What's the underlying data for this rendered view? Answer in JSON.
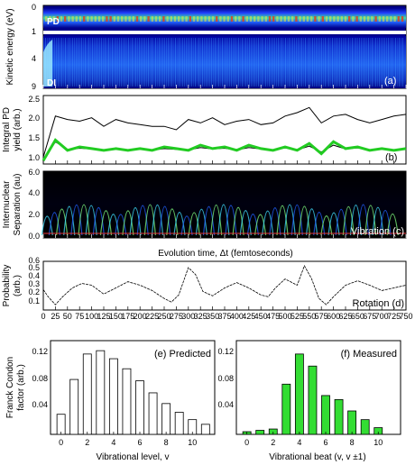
{
  "panel_a": {
    "ylabel": "Kinetic energy (eV)",
    "yticks": [
      "0",
      "1",
      "4",
      "9"
    ],
    "label_pd": "PD",
    "label_di": "DI",
    "panel_label": "(a)"
  },
  "panel_b": {
    "ylabel_line1": "Integral PD",
    "ylabel_line2": "yield (arb.)",
    "yticks": [
      "1.0",
      "1.5",
      "2.0",
      "2.5"
    ],
    "panel_label": "(b)"
  },
  "panel_c": {
    "ylabel_line1": "Internuclear",
    "ylabel_line2": "Separation (au)",
    "yticks": [
      "0.0",
      "2.0",
      "4.0",
      "6.0"
    ],
    "panel_label": "Vibration (c)"
  },
  "panel_d": {
    "ylabel_line1": "Probability",
    "ylabel_line2": "(arb.)",
    "yticks": [
      "0.1",
      "0.2",
      "0.3",
      "0.4",
      "0.5",
      "0.6"
    ],
    "panel_label": "Rotation (d)"
  },
  "time_axis": {
    "xlabel": "Evolution time, Δt (femtoseconds)",
    "xticks": [
      "0",
      "25",
      "50",
      "75",
      "100",
      "125",
      "150",
      "175",
      "200",
      "225",
      "250",
      "275",
      "300",
      "325",
      "350",
      "375",
      "400",
      "425",
      "450",
      "475",
      "500",
      "525",
      "550",
      "575",
      "600",
      "625",
      "650",
      "675",
      "700",
      "725",
      "750"
    ]
  },
  "panel_e": {
    "ylabel_line1": "Franck Condon",
    "ylabel_line2": "factor (arb.)",
    "xlabel": "Vibrational level, v",
    "panel_label": "(e) Predicted",
    "yticks": [
      "0.04",
      "0.08",
      "0.12"
    ],
    "xticks": [
      "0",
      "2",
      "4",
      "6",
      "8",
      "10"
    ]
  },
  "panel_f": {
    "xlabel": "Vibrational beat (v, v ±1)",
    "panel_label": "(f) Measured",
    "yticks": [
      "0.04",
      "0.08",
      "0.12"
    ],
    "xticks": [
      "0",
      "2",
      "4",
      "6",
      "8",
      "10"
    ]
  },
  "colors": {
    "heatmap_background": "#00008b",
    "green_fit": "#22cc22",
    "bar_green": "#33dd33",
    "bar_white": "#ffffff",
    "line_black": "#000000"
  },
  "chart_data": [
    {
      "type": "heatmap",
      "panel": "a",
      "ylabel": "Kinetic energy (eV)",
      "x_range": [
        0,
        750
      ],
      "y_ticks": [
        0,
        1,
        4,
        9
      ]
    },
    {
      "type": "line",
      "panel": "b",
      "ylabel": "Integral PD yield (arb.)",
      "x_range": [
        0,
        750
      ],
      "ylim": [
        0.9,
        2.9
      ],
      "series": [
        {
          "x": [
            0,
            25,
            50,
            75,
            100,
            125,
            150,
            175,
            200,
            225,
            250,
            275,
            300,
            325,
            350,
            375,
            400,
            425,
            450,
            475,
            500,
            525,
            550,
            575,
            600,
            625,
            650,
            675,
            700,
            725,
            750
          ],
          "values": [
            1.1,
            2.3,
            2.2,
            2.15,
            2.25,
            2.0,
            2.2,
            2.1,
            2.05,
            2.0,
            2.0,
            1.9,
            2.2,
            2.1,
            2.25,
            2.05,
            2.15,
            2.2,
            2.05,
            2.1,
            2.3,
            2.4,
            2.55,
            2.1,
            2.3,
            2.35,
            2.2,
            2.1,
            2.2,
            2.3,
            2.35
          ]
        },
        {
          "x": [
            0,
            25,
            50,
            75,
            100,
            125,
            150,
            175,
            200,
            225,
            250,
            275,
            300,
            325,
            350,
            375,
            400,
            425,
            450,
            475,
            500,
            525,
            550,
            575,
            600,
            625,
            650,
            675,
            700,
            725,
            750
          ],
          "values": [
            1.0,
            1.6,
            1.3,
            1.4,
            1.35,
            1.3,
            1.35,
            1.3,
            1.35,
            1.3,
            1.4,
            1.35,
            1.3,
            1.45,
            1.35,
            1.4,
            1.3,
            1.45,
            1.35,
            1.3,
            1.4,
            1.3,
            1.5,
            1.2,
            1.55,
            1.35,
            1.4,
            1.3,
            1.35,
            1.3,
            1.35
          ]
        },
        {
          "x": [
            0,
            25,
            50,
            75,
            100,
            125,
            150,
            175,
            200,
            225,
            250,
            275,
            300,
            325,
            350,
            375,
            400,
            425,
            450,
            475,
            500,
            525,
            550,
            575,
            600,
            625,
            650,
            675,
            700,
            725,
            750
          ],
          "values": [
            1.0,
            1.55,
            1.32,
            1.36,
            1.34,
            1.31,
            1.33,
            1.32,
            1.33,
            1.3,
            1.35,
            1.33,
            1.31,
            1.38,
            1.34,
            1.36,
            1.31,
            1.38,
            1.34,
            1.31,
            1.37,
            1.31,
            1.42,
            1.25,
            1.45,
            1.34,
            1.37,
            1.31,
            1.34,
            1.31,
            1.33
          ]
        }
      ]
    },
    {
      "type": "heatmap",
      "panel": "c",
      "ylabel": "Internuclear Separation (au)",
      "x_range": [
        0,
        750
      ],
      "ylim": [
        0,
        6
      ]
    },
    {
      "type": "line",
      "panel": "d",
      "ylabel": "Probability (arb.)",
      "x_range": [
        0,
        750
      ],
      "ylim": [
        0.05,
        0.6
      ],
      "series": [
        {
          "x": [
            0,
            10,
            25,
            40,
            60,
            80,
            100,
            125,
            150,
            175,
            200,
            225,
            250,
            265,
            280,
            300,
            315,
            330,
            350,
            375,
            400,
            425,
            450,
            465,
            480,
            500,
            525,
            540,
            555,
            570,
            585,
            600,
            625,
            650,
            675,
            700,
            725,
            750
          ],
          "values": [
            0.28,
            0.2,
            0.11,
            0.2,
            0.3,
            0.35,
            0.33,
            0.23,
            0.3,
            0.37,
            0.33,
            0.27,
            0.18,
            0.14,
            0.22,
            0.53,
            0.45,
            0.26,
            0.21,
            0.3,
            0.36,
            0.3,
            0.22,
            0.2,
            0.3,
            0.4,
            0.33,
            0.55,
            0.4,
            0.18,
            0.11,
            0.2,
            0.33,
            0.38,
            0.33,
            0.27,
            0.3,
            0.33
          ]
        }
      ]
    },
    {
      "type": "bar",
      "panel": "e",
      "title": "(e) Predicted",
      "xlabel": "Vibrational level, v",
      "ylabel": "Franck Condon factor (arb.)",
      "categories": [
        0,
        1,
        2,
        3,
        4,
        5,
        6,
        7,
        8,
        9,
        10,
        11
      ],
      "values": [
        0.03,
        0.082,
        0.12,
        0.125,
        0.113,
        0.098,
        0.08,
        0.062,
        0.046,
        0.033,
        0.022,
        0.015
      ],
      "ylim": [
        0,
        0.14
      ]
    },
    {
      "type": "bar",
      "panel": "f",
      "title": "(f) Measured",
      "xlabel": "Vibrational beat (v, v ±1)",
      "categories": [
        0,
        1,
        2,
        3,
        4,
        5,
        6,
        7,
        8,
        9,
        10
      ],
      "values": [
        0.004,
        0.006,
        0.008,
        0.075,
        0.12,
        0.102,
        0.058,
        0.052,
        0.035,
        0.022,
        0.01
      ],
      "ylim": [
        0,
        0.14
      ]
    }
  ]
}
